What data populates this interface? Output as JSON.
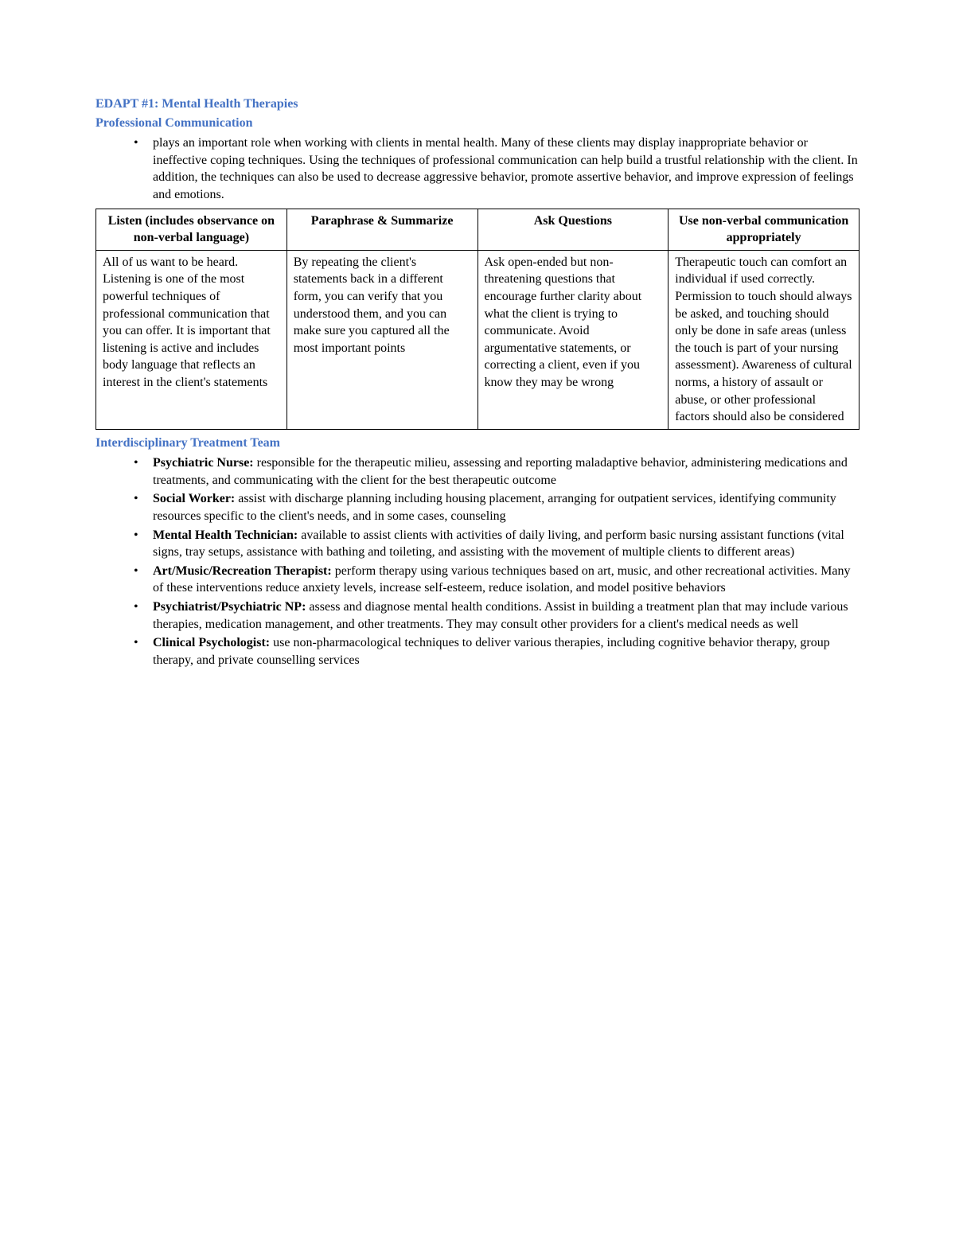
{
  "headings": {
    "main": "EDAPT #1: Mental Health Therapies",
    "prof_comm": "Professional Communication",
    "team": "Interdisciplinary Treatment Team"
  },
  "intro_bullet": "plays an important role when working with clients in mental health. Many of these clients may display inappropriate behavior or ineffective coping techniques. Using the techniques of professional communication can help build a trustful relationship with the client. In addition, the techniques can also be used to decrease aggressive behavior, promote assertive behavior, and improve expression of feelings and emotions.",
  "comm_table": {
    "headers": [
      "Listen (includes observance on non-verbal language)",
      "Paraphrase & Summarize",
      "Ask Questions",
      "Use non-verbal communication appropriately"
    ],
    "cells": [
      "All of us want to be heard. Listening is one of the most powerful techniques of professional communication that you can offer. It is important that listening is active and includes body language that reflects an interest in the client's statements",
      "By repeating the client's statements back in a different form, you can verify that you understood them, and you can make sure you captured all the most important points",
      "Ask open-ended but non-threatening questions that encourage further clarity about what the client is trying to communicate. Avoid argumentative statements, or correcting a client, even if you know they may be wrong",
      "Therapeutic touch can comfort an individual if used correctly. Permission to touch should always be asked, and touching should only be done in safe areas (unless the touch is part of your nursing assessment). Awareness of cultural norms, a history of assault or abuse, or other professional factors should also be considered"
    ]
  },
  "team": [
    {
      "role": "Psychiatric Nurse:",
      "desc": " responsible for the therapeutic milieu, assessing and reporting maladaptive behavior, administering medications and treatments, and communicating with the client for the best therapeutic outcome"
    },
    {
      "role": "Social Worker:",
      "desc": " assist with discharge planning including housing placement, arranging for outpatient services, identifying community resources specific to the client's needs, and in some cases, counseling"
    },
    {
      "role": "Mental Health Technician:",
      "desc": " available to assist clients with activities of daily living, and perform basic nursing assistant functions (vital signs, tray setups, assistance with bathing and toileting, and assisting with the movement of multiple clients to different areas)"
    },
    {
      "role": "Art/Music/Recreation Therapist:",
      "desc": " perform therapy using various techniques based on art, music, and other recreational activities. Many of these interventions reduce anxiety levels, increase self-esteem, reduce isolation, and model positive behaviors"
    },
    {
      "role": "Psychiatrist/Psychiatric NP:",
      "desc": " assess and diagnose mental health conditions. Assist in building a treatment plan that may include various therapies, medication management, and other treatments. They may consult other providers for a client's medical needs as well"
    },
    {
      "role": "Clinical Psychologist:",
      "desc": " use non-pharmacological techniques to deliver various therapies, including cognitive behavior therapy, group therapy, and private counselling services"
    }
  ],
  "colors": {
    "heading_blue": "#4472c4",
    "body_text": "#000000",
    "background": "#ffffff",
    "table_border": "#000000"
  },
  "typography": {
    "font_family": "Times New Roman",
    "body_size_pt": 12,
    "heading_size_pt": 12,
    "heading_weight": "bold"
  }
}
